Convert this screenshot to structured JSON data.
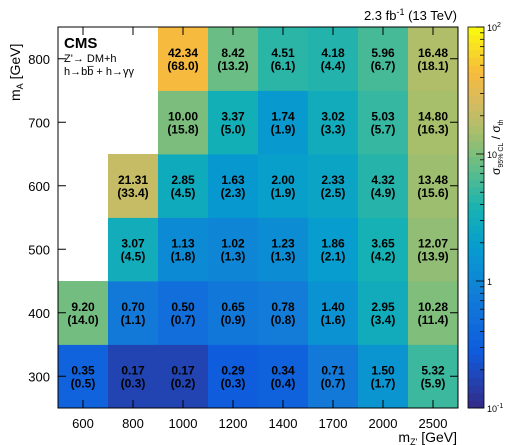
{
  "chart_data": {
    "type": "heatmap",
    "top_right_label": "2.3 fb",
    "top_right_sup": "-1",
    "top_right_suffix": " (13 TeV)",
    "experiment": "CMS",
    "model_line1": "Z'→ DM+h",
    "model_line2": "h→bb̅ + h→γγ",
    "xlabel": "m",
    "xlabel_sub": "Z'",
    "xlabel_unit": " [GeV]",
    "ylabel": "m",
    "ylabel_sub": "A",
    "ylabel_unit": " [GeV]",
    "zlabel": "σ",
    "zlabel_sub": "95% CL",
    "zlabel_over": " / σ",
    "zlabel_over_sub": "th",
    "x_categories": [
      "600",
      "800",
      "1000",
      "1200",
      "1400",
      "1700",
      "2000",
      "2500"
    ],
    "y_categories": [
      "300",
      "400",
      "500",
      "600",
      "700",
      "800"
    ],
    "z_scale": "log",
    "z_range": [
      0.1,
      100
    ],
    "z_ticks": [
      {
        "value": 0.1,
        "base": "10",
        "exp": "-1"
      },
      {
        "value": 1,
        "base": "1",
        "exp": ""
      },
      {
        "value": 10,
        "base": "10",
        "exp": ""
      },
      {
        "value": 100,
        "base": "10",
        "exp": "2"
      }
    ],
    "cells": [
      {
        "x": "600",
        "y": "300",
        "value": "0.35",
        "expected": "(0.5)"
      },
      {
        "x": "800",
        "y": "300",
        "value": "0.17",
        "expected": "(0.3)"
      },
      {
        "x": "1000",
        "y": "300",
        "value": "0.17",
        "expected": "(0.2)"
      },
      {
        "x": "1200",
        "y": "300",
        "value": "0.29",
        "expected": "(0.3)"
      },
      {
        "x": "1400",
        "y": "300",
        "value": "0.34",
        "expected": "(0.4)"
      },
      {
        "x": "1700",
        "y": "300",
        "value": "0.71",
        "expected": "(0.7)"
      },
      {
        "x": "2000",
        "y": "300",
        "value": "1.50",
        "expected": "(1.7)"
      },
      {
        "x": "2500",
        "y": "300",
        "value": "5.32",
        "expected": "(5.9)"
      },
      {
        "x": "600",
        "y": "400",
        "value": "9.20",
        "expected": "(14.0)"
      },
      {
        "x": "800",
        "y": "400",
        "value": "0.70",
        "expected": "(1.1)"
      },
      {
        "x": "1000",
        "y": "400",
        "value": "0.50",
        "expected": "(0.7)"
      },
      {
        "x": "1200",
        "y": "400",
        "value": "0.65",
        "expected": "(0.9)"
      },
      {
        "x": "1400",
        "y": "400",
        "value": "0.78",
        "expected": "(0.8)"
      },
      {
        "x": "1700",
        "y": "400",
        "value": "1.40",
        "expected": "(1.6)"
      },
      {
        "x": "2000",
        "y": "400",
        "value": "2.95",
        "expected": "(3.4)"
      },
      {
        "x": "2500",
        "y": "400",
        "value": "10.28",
        "expected": "(11.4)"
      },
      {
        "x": "800",
        "y": "500",
        "value": "3.07",
        "expected": "(4.5)"
      },
      {
        "x": "1000",
        "y": "500",
        "value": "1.13",
        "expected": "(1.8)"
      },
      {
        "x": "1200",
        "y": "500",
        "value": "1.02",
        "expected": "(1.3)"
      },
      {
        "x": "1400",
        "y": "500",
        "value": "1.23",
        "expected": "(1.3)"
      },
      {
        "x": "1700",
        "y": "500",
        "value": "1.86",
        "expected": "(2.1)"
      },
      {
        "x": "2000",
        "y": "500",
        "value": "3.65",
        "expected": "(4.2)"
      },
      {
        "x": "2500",
        "y": "500",
        "value": "12.07",
        "expected": "(13.9)"
      },
      {
        "x": "800",
        "y": "600",
        "value": "21.31",
        "expected": "(33.4)"
      },
      {
        "x": "1000",
        "y": "600",
        "value": "2.85",
        "expected": "(4.5)"
      },
      {
        "x": "1200",
        "y": "600",
        "value": "1.63",
        "expected": "(2.3)"
      },
      {
        "x": "1400",
        "y": "600",
        "value": "2.00",
        "expected": "(1.9)"
      },
      {
        "x": "1700",
        "y": "600",
        "value": "2.33",
        "expected": "(2.5)"
      },
      {
        "x": "2000",
        "y": "600",
        "value": "4.32",
        "expected": "(4.9)"
      },
      {
        "x": "2500",
        "y": "600",
        "value": "13.48",
        "expected": "(15.6)"
      },
      {
        "x": "1000",
        "y": "700",
        "value": "10.00",
        "expected": "(15.8)"
      },
      {
        "x": "1200",
        "y": "700",
        "value": "3.37",
        "expected": "(5.0)"
      },
      {
        "x": "1400",
        "y": "700",
        "value": "1.74",
        "expected": "(1.9)"
      },
      {
        "x": "1700",
        "y": "700",
        "value": "3.02",
        "expected": "(3.3)"
      },
      {
        "x": "2000",
        "y": "700",
        "value": "5.03",
        "expected": "(5.7)"
      },
      {
        "x": "2500",
        "y": "700",
        "value": "14.80",
        "expected": "(16.3)"
      },
      {
        "x": "1000",
        "y": "800",
        "value": "42.34",
        "expected": "(68.0)"
      },
      {
        "x": "1200",
        "y": "800",
        "value": "8.42",
        "expected": "(13.2)"
      },
      {
        "x": "1400",
        "y": "800",
        "value": "4.51",
        "expected": "(6.1)"
      },
      {
        "x": "1700",
        "y": "800",
        "value": "4.18",
        "expected": "(4.4)"
      },
      {
        "x": "2000",
        "y": "800",
        "value": "5.96",
        "expected": "(6.7)"
      },
      {
        "x": "2500",
        "y": "800",
        "value": "16.48",
        "expected": "(18.1)"
      }
    ]
  }
}
